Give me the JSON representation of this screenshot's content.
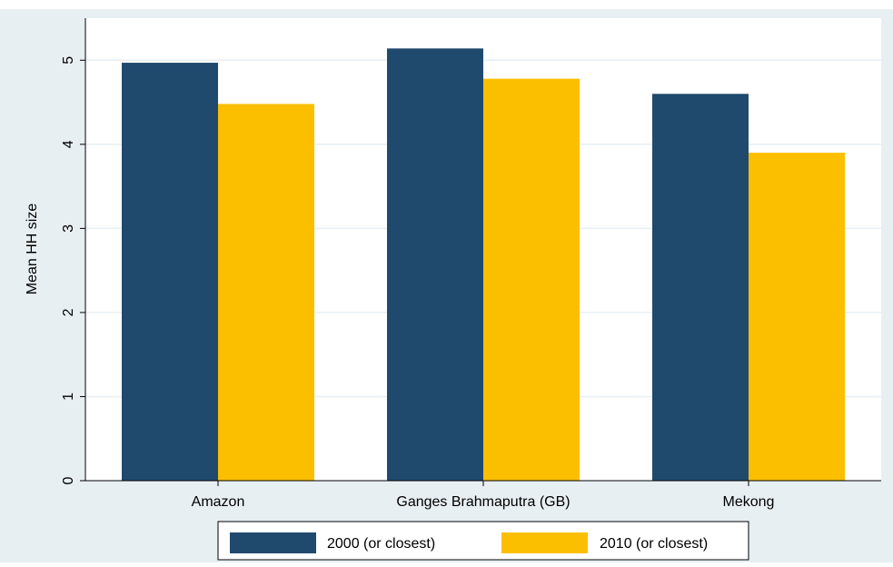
{
  "chart_data": {
    "type": "bar",
    "categories": [
      "Amazon",
      "Ganges Brahmaputra (GB)",
      "Mekong"
    ],
    "series": [
      {
        "name": "2000 (or closest)",
        "values": [
          4.97,
          5.14,
          4.6
        ],
        "color": "#1f4a6e"
      },
      {
        "name": "2010 (or closest)",
        "values": [
          4.48,
          4.78,
          3.9
        ],
        "color": "#fbbf00"
      }
    ],
    "title": "",
    "xlabel": "",
    "ylabel": "Mean HH size",
    "ylim": [
      0,
      5.5
    ],
    "yticks": [
      0,
      1,
      2,
      3,
      4,
      5
    ],
    "grid": true,
    "legend_position": "bottom",
    "colors": {
      "outer_background": "#e8eff3",
      "plot_background": "#ffffff",
      "grid": "#e8eff3"
    }
  }
}
